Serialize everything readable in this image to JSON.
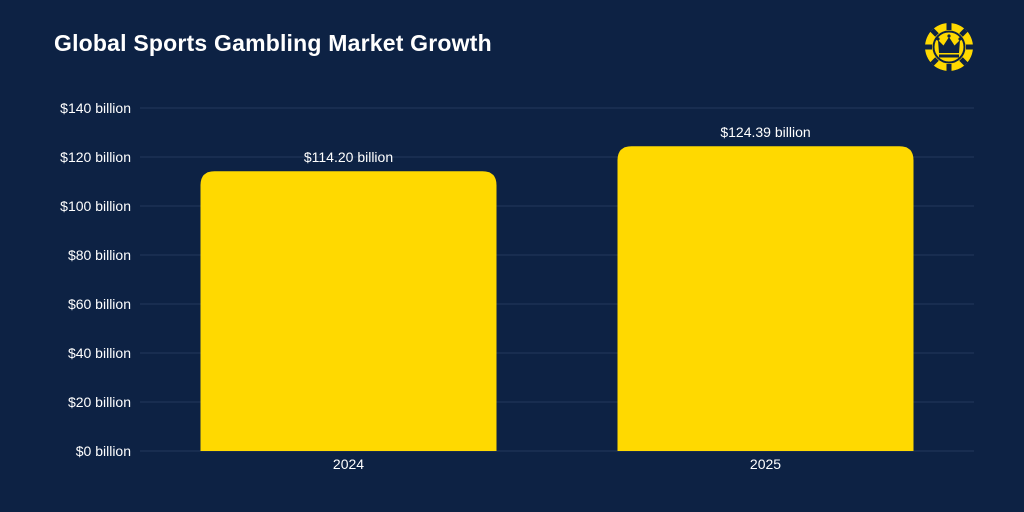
{
  "title": "Global Sports Gambling Market Growth",
  "logo": {
    "icon": "crown-poker-chip-icon",
    "color": "#ffd900"
  },
  "colors": {
    "background": "#0d2244",
    "bar": "#ffd900",
    "grid": "#22385c",
    "text": "#ffffff"
  },
  "chart_data": {
    "type": "bar",
    "title": "Global Sports Gambling Market Growth",
    "categories": [
      "2024",
      "2025"
    ],
    "values": [
      114.2,
      124.39
    ],
    "data_labels": [
      "$114.20 billion",
      "$124.39 billion"
    ],
    "y_ticks": [
      0,
      20,
      40,
      60,
      80,
      100,
      120,
      140
    ],
    "y_tick_labels": [
      "$0 billion",
      "$20 billion",
      "$40 billion",
      "$60 billion",
      "$80 billion",
      "$100 billion",
      "$120 billion",
      "$140 billion"
    ],
    "ylim": [
      0,
      140
    ],
    "grid": true,
    "legend": "none"
  }
}
